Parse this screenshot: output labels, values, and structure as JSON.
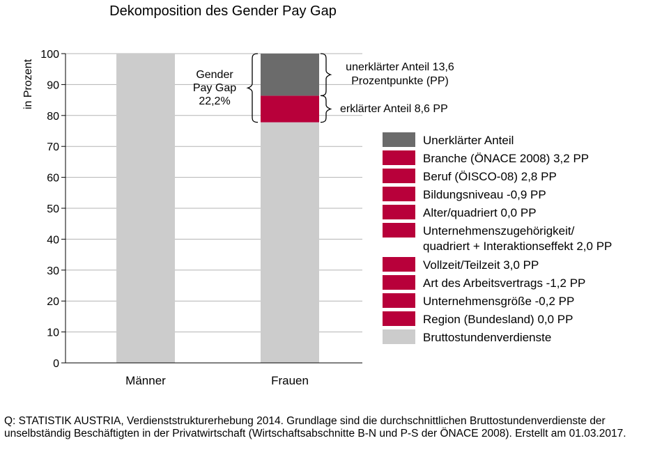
{
  "chart_data": {
    "type": "bar",
    "stacked": true,
    "title": "Dekomposition des Gender Pay Gap",
    "ylabel": "in Prozent",
    "xlabel": "",
    "ylim": [
      0,
      100
    ],
    "yticks": [
      0,
      10,
      20,
      30,
      40,
      50,
      60,
      70,
      80,
      90,
      100
    ],
    "grid": true,
    "legend_position": "right",
    "categories": [
      "Männer",
      "Frauen"
    ],
    "series": [
      {
        "name": "Bruttostundenverdienste",
        "values": [
          100,
          77.8
        ],
        "color": "#cccccc"
      },
      {
        "name": "erklärter Anteil",
        "values": [
          0,
          8.6
        ],
        "color": "#b8003a"
      },
      {
        "name": "Unerklärter Anteil",
        "values": [
          0,
          13.6
        ],
        "color": "#6b6b6b"
      }
    ],
    "annotations": {
      "gap": "Gender\nPay Gap\n22,2%",
      "unexplained": "unerklärter Anteil 13,6\nProzentpunkte (PP)",
      "explained": "erklärter Anteil 8,6 PP"
    },
    "legend": [
      {
        "label": "Unerklärter Anteil",
        "color": "#6b6b6b"
      },
      {
        "label": "Branche (ÖNACE 2008) 3,2 PP",
        "color": "#b8003a"
      },
      {
        "label": "Beruf (ÖISCO-08) 2,8 PP",
        "color": "#b8003a"
      },
      {
        "label": "Bildungsniveau -0,9 PP",
        "color": "#b8003a"
      },
      {
        "label": "Alter/quadriert 0,0 PP",
        "color": "#b8003a"
      },
      {
        "label": "Unternehmenszugehörigkeit/\nquadriert + Interaktionseffekt 2,0 PP",
        "color": "#b8003a"
      },
      {
        "label": "Vollzeit/Teilzeit 3,0 PP",
        "color": "#b8003a"
      },
      {
        "label": "Art des Arbeitsvertrags -1,2 PP",
        "color": "#b8003a"
      },
      {
        "label": "Unternehmensgröße -0,2 PP",
        "color": "#b8003a"
      },
      {
        "label": "Region (Bundesland) 0,0 PP",
        "color": "#b8003a"
      },
      {
        "label": "Bruttostundenverdienste",
        "color": "#cccccc"
      }
    ]
  },
  "source_note": "Q: STATISTIK AUSTRIA, Verdienststrukturerhebung 2014. Grundlage sind die durchschnittlichen Bruttostundenverdienste der unselbständig Beschäftigten in der Privatwirtschaft (Wirtschaftsabschnitte B-N und P-S der ÖNACE 2008).  Erstellt am 01.03.2017."
}
